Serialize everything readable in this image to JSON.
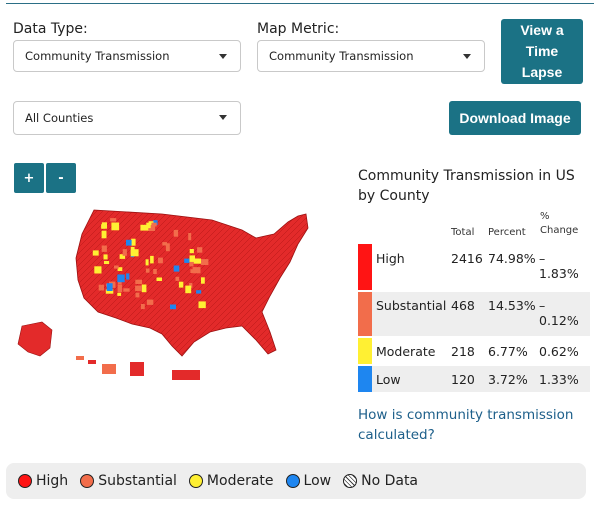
{
  "controls": {
    "data_type_label": "Data Type:",
    "data_type_value": "Community Transmission",
    "map_metric_label": "Map Metric:",
    "map_metric_value": "Community Transmission",
    "county_value": "All Counties",
    "time_lapse_label": "View a Time Lapse",
    "download_label": "Download Image",
    "zoom_in": "+",
    "zoom_out": "-"
  },
  "panel": {
    "title": "Community Transmission in US by County",
    "col_total": "Total",
    "col_percent": "Percent",
    "col_change": "% Change",
    "rows": [
      {
        "level": "High",
        "total": "2416",
        "percent": "74.98%",
        "change": "– 1.83%",
        "color": "#ff1414"
      },
      {
        "level": "Substantial",
        "total": "468",
        "percent": "14.53%",
        "change": "– 0.12%",
        "color": "#f26d4b"
      },
      {
        "level": "Moderate",
        "total": "218",
        "percent": "6.77%",
        "change": "0.62%",
        "color": "#fff033"
      },
      {
        "level": "Low",
        "total": "120",
        "percent": "3.72%",
        "change": "1.33%",
        "color": "#1e86f0"
      }
    ],
    "link_text": "How is community transmission calculated?"
  },
  "legend": [
    {
      "label": "High",
      "color": "#ff1414"
    },
    {
      "label": "Substantial",
      "color": "#f26d4b"
    },
    {
      "label": "Moderate",
      "color": "#fff033"
    },
    {
      "label": "Low",
      "color": "#1e86f0"
    },
    {
      "label": "No Data",
      "color": "hatch"
    }
  ],
  "colors": {
    "accent": "#1b7285",
    "link": "#1d5f8a",
    "map_main": "#e02828"
  }
}
